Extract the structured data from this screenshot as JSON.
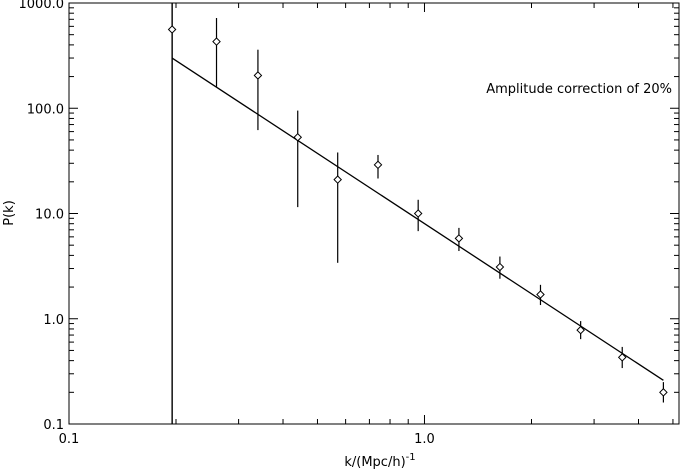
{
  "chart_data": {
    "type": "scatter",
    "xlabel": "k/(Mpc/h)",
    "xlabel_sup": "-1",
    "ylabel": "P(k)",
    "xscale": "log",
    "yscale": "log",
    "xlim": [
      0.1,
      5.2
    ],
    "ylim": [
      0.1,
      1000
    ],
    "x_ticks": [
      {
        "value": 0.1,
        "label": "0.1"
      },
      {
        "value": 1.0,
        "label": "1.0"
      }
    ],
    "y_ticks": [
      {
        "value": 0.1,
        "label": "0.1"
      },
      {
        "value": 1.0,
        "label": "1.0"
      },
      {
        "value": 10.0,
        "label": "10.0"
      },
      {
        "value": 100.0,
        "label": "100.0"
      },
      {
        "value": 1000.0,
        "label": "1000.0"
      }
    ],
    "annotation": "Amplitude correction of 20%",
    "points": [
      {
        "x": 0.195,
        "y": 560,
        "ylo": 0.1,
        "yhi": 1000
      },
      {
        "x": 0.26,
        "y": 430,
        "ylo": 160,
        "yhi": 720
      },
      {
        "x": 0.34,
        "y": 205,
        "ylo": 62,
        "yhi": 360
      },
      {
        "x": 0.44,
        "y": 53,
        "ylo": 11.5,
        "yhi": 95
      },
      {
        "x": 0.57,
        "y": 21,
        "ylo": 3.4,
        "yhi": 38
      },
      {
        "x": 0.74,
        "y": 29,
        "ylo": 21.5,
        "yhi": 36
      },
      {
        "x": 0.96,
        "y": 10,
        "ylo": 6.8,
        "yhi": 13.5
      },
      {
        "x": 1.25,
        "y": 5.8,
        "ylo": 4.4,
        "yhi": 7.3
      },
      {
        "x": 1.63,
        "y": 3.1,
        "ylo": 2.4,
        "yhi": 3.9
      },
      {
        "x": 2.12,
        "y": 1.7,
        "ylo": 1.35,
        "yhi": 2.1
      },
      {
        "x": 2.75,
        "y": 0.78,
        "ylo": 0.64,
        "yhi": 0.95
      },
      {
        "x": 3.6,
        "y": 0.43,
        "ylo": 0.34,
        "yhi": 0.54
      },
      {
        "x": 4.7,
        "y": 0.2,
        "ylo": 0.16,
        "yhi": 0.25
      }
    ],
    "fit_line": [
      {
        "x": 0.195,
        "y": 300
      },
      {
        "x": 4.7,
        "y": 0.26
      }
    ],
    "vertical_line_x": 0.195
  }
}
